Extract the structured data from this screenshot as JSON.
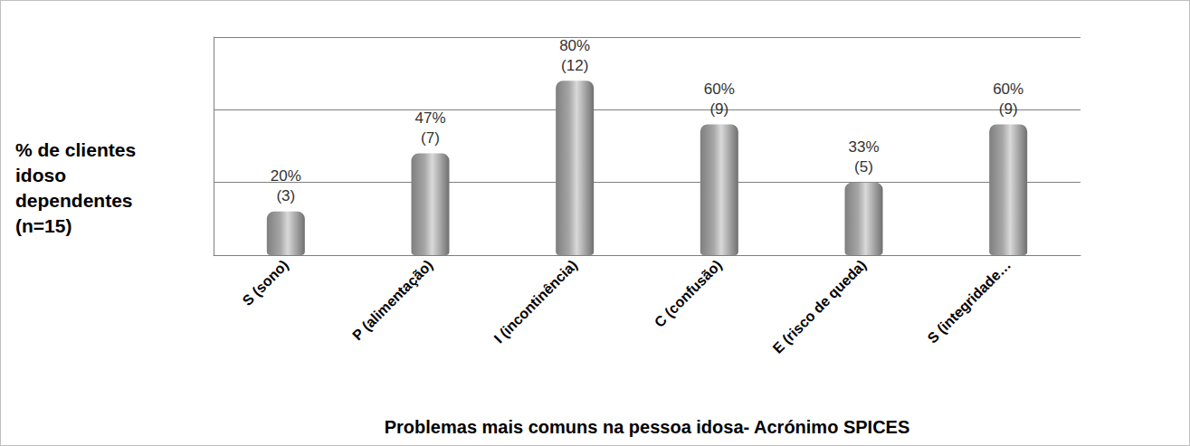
{
  "chart_data": {
    "type": "bar",
    "y_label": "% de clientes\nidoso\ndependentes\n(n=15)",
    "x_label": "Problemas mais comuns na pessoa idosa- Acrónimo SPICES",
    "categories": [
      "S (sono)",
      "P (alimentação)",
      "I (incontinência)",
      "C (confusão)",
      "E (risco de queda)",
      "S (integridade…"
    ],
    "values": [
      3,
      7,
      12,
      9,
      5,
      9
    ],
    "value_labels": [
      "20%\n(3)",
      "47%\n(7)",
      "80%\n(12)",
      "60%\n(9)",
      "33%\n(5)",
      "60%\n(9)"
    ],
    "data_labels": true,
    "color": "#a6a6a6",
    "ylim": [
      0,
      15
    ],
    "yticks": [
      0,
      5,
      10,
      15
    ],
    "grid": true,
    "tick_labels": "x"
  }
}
